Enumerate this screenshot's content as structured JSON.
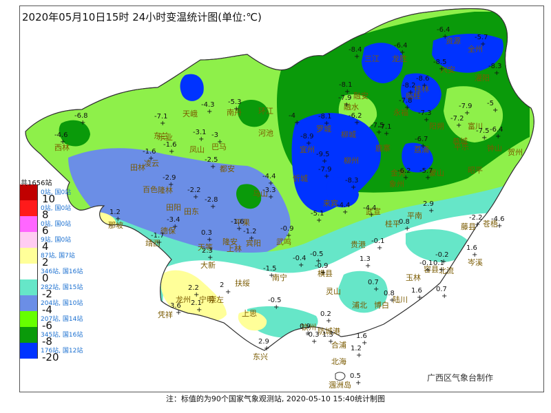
{
  "title": "2020年05月10日15时 24小时变温统计图(单位:℃)",
  "legend": {
    "total": "共1656站",
    "items": [
      {
        "color": "#c00000",
        "count": "0站, 国0站"
      },
      {
        "color": "#ff1a1a",
        "count": "0站, 国0站"
      },
      {
        "color": "#ff66ff",
        "count": "0站, 国0站"
      },
      {
        "color": "#ffccf2",
        "count": "9站, 国0站"
      },
      {
        "color": "#ffff99",
        "count": "87站, 国7站"
      },
      {
        "color": "#ffffff",
        "count": "346站, 国16站"
      },
      {
        "color": "#66e6c8",
        "count": "282站, 国15站"
      },
      {
        "color": "#6b8ee6",
        "count": "204站, 国10站"
      },
      {
        "color": "#66ff00",
        "count": "207站, 国14站"
      },
      {
        "color": "#0a9a0a",
        "count": "345站, 国16站"
      },
      {
        "color": "#0033ff",
        "count": "176站, 国12站"
      }
    ],
    "thresholds": [
      "10",
      "8",
      "6",
      "4",
      "2",
      "0",
      "-2",
      "-4",
      "-6",
      "-8",
      "-20"
    ]
  },
  "credit": "广西区气象台制作",
  "footer": "注：标值的为90个国家气象观测站, 2020-05-10 15:40统计制图",
  "places": [
    {
      "name": "资源"
    },
    {
      "name": "全州"
    },
    {
      "name": "三江"
    },
    {
      "name": "龙胜"
    },
    {
      "name": "兴安"
    },
    {
      "name": "灌阳"
    },
    {
      "name": "融安"
    },
    {
      "name": "临桂"
    },
    {
      "name": "桂林"
    },
    {
      "name": "融水"
    },
    {
      "name": "永福"
    },
    {
      "name": "阳朔"
    },
    {
      "name": "恭城"
    },
    {
      "name": "富川"
    },
    {
      "name": "钟山"
    },
    {
      "name": "贺州"
    },
    {
      "name": "罗城"
    },
    {
      "name": "柳城"
    },
    {
      "name": "鹿寨"
    },
    {
      "name": "荔浦"
    },
    {
      "name": "平乐"
    },
    {
      "name": "昭平"
    },
    {
      "name": "蒙山"
    },
    {
      "name": "金秀"
    },
    {
      "name": "宜州"
    },
    {
      "name": "柳州"
    },
    {
      "name": "象州"
    },
    {
      "name": "环江"
    },
    {
      "name": "南丹"
    },
    {
      "name": "天峨"
    },
    {
      "name": "河池"
    },
    {
      "name": "东兰"
    },
    {
      "name": "凤山"
    },
    {
      "name": "巴马"
    },
    {
      "name": "都安"
    },
    {
      "name": "忻城"
    },
    {
      "name": "来宾"
    },
    {
      "name": "武宣"
    },
    {
      "name": "桂平"
    },
    {
      "name": "平南"
    },
    {
      "name": "藤县"
    },
    {
      "name": "苍梧"
    },
    {
      "name": "乐业"
    },
    {
      "name": "凌云"
    },
    {
      "name": "田林"
    },
    {
      "name": "隆林"
    },
    {
      "name": "西林"
    },
    {
      "name": "百色"
    },
    {
      "name": "田阳"
    },
    {
      "name": "田东"
    },
    {
      "name": "平果"
    },
    {
      "name": "马山"
    },
    {
      "name": "上林"
    },
    {
      "name": "宾阳"
    },
    {
      "name": "武鸣"
    },
    {
      "name": "那坡"
    },
    {
      "name": "德保"
    },
    {
      "name": "靖西"
    },
    {
      "name": "天等"
    },
    {
      "name": "大新"
    },
    {
      "name": "隆安"
    },
    {
      "name": "南宁"
    },
    {
      "name": "横县"
    },
    {
      "name": "贵港"
    },
    {
      "name": "容县"
    },
    {
      "name": "北流"
    },
    {
      "name": "玉林"
    },
    {
      "name": "岑溪"
    },
    {
      "name": "灵山"
    },
    {
      "name": "浦北"
    },
    {
      "name": "博白"
    },
    {
      "name": "陆川"
    },
    {
      "name": "崇左"
    },
    {
      "name": "扶绥"
    },
    {
      "name": "龙州"
    },
    {
      "name": "宁明"
    },
    {
      "name": "凭祥"
    },
    {
      "name": "上思"
    },
    {
      "name": "钦州"
    },
    {
      "name": "防城港"
    },
    {
      "name": "东兴"
    },
    {
      "name": "合浦"
    },
    {
      "name": "北海"
    },
    {
      "name": "涠洲岛"
    }
  ],
  "values": [
    {
      "v": "-6.4"
    },
    {
      "v": "-5.7"
    },
    {
      "v": "-8.4"
    },
    {
      "v": "-6.4"
    },
    {
      "v": "-8.5"
    },
    {
      "v": "-8.3"
    },
    {
      "v": "-8.1"
    },
    {
      "v": "-8.2"
    },
    {
      "v": "-8.6"
    },
    {
      "v": "-7.9"
    },
    {
      "v": "-7.8"
    },
    {
      "v": "-7.3"
    },
    {
      "v": "-7.2"
    },
    {
      "v": "-7.9"
    },
    {
      "v": "-7.5"
    },
    {
      "v": "-5"
    },
    {
      "v": "-6.4"
    },
    {
      "v": "-8.1"
    },
    {
      "v": "-6.2"
    },
    {
      "v": "-8.9"
    },
    {
      "v": "-7.5"
    },
    {
      "v": "-7.1"
    },
    {
      "v": "-6.7"
    },
    {
      "v": "-9.5"
    },
    {
      "v": "-7.9"
    },
    {
      "v": "-6.2"
    },
    {
      "v": "-5.7"
    },
    {
      "v": "-8.3"
    },
    {
      "v": "-4.3"
    },
    {
      "v": "-5.3"
    },
    {
      "v": "-4"
    },
    {
      "v": "-7.1"
    },
    {
      "v": "-3.1"
    },
    {
      "v": "-3"
    },
    {
      "v": "-6.8"
    },
    {
      "v": "-4.6"
    },
    {
      "v": "-1.6"
    },
    {
      "v": "-1.6"
    },
    {
      "v": "-2.5"
    },
    {
      "v": "-2.9"
    },
    {
      "v": "-2.2"
    },
    {
      "v": "-2.8"
    },
    {
      "v": "-4.4"
    },
    {
      "v": "-3.3"
    },
    {
      "v": "-5.1"
    },
    {
      "v": "-4.4"
    },
    {
      "v": "-4.4"
    },
    {
      "v": "-2.2"
    },
    {
      "v": "-4.6"
    },
    {
      "v": "1.2"
    },
    {
      "v": "-3.4"
    },
    {
      "v": "-1.7"
    },
    {
      "v": "0.3"
    },
    {
      "v": "-1.6"
    },
    {
      "v": "-1.2"
    },
    {
      "v": "-0.9"
    },
    {
      "v": "-0.1"
    },
    {
      "v": "0.8"
    },
    {
      "v": "2.9"
    },
    {
      "v": "2.3"
    },
    {
      "v": "-0.4"
    },
    {
      "v": "-0.5"
    },
    {
      "v": "-0.9"
    },
    {
      "v": "-1.5"
    },
    {
      "v": "1.3"
    },
    {
      "v": "0.7"
    },
    {
      "v": "-0.2"
    },
    {
      "v": "-0.1"
    },
    {
      "v": "0.1"
    },
    {
      "v": "1.6"
    },
    {
      "v": "2.2"
    },
    {
      "v": "2"
    },
    {
      "v": "3.6"
    },
    {
      "v": "2.1"
    },
    {
      "v": "-0.5"
    },
    {
      "v": "0.8"
    },
    {
      "v": "1.6"
    },
    {
      "v": "0.7"
    },
    {
      "v": "0.2"
    },
    {
      "v": "0.9"
    },
    {
      "v": "-0.3"
    },
    {
      "v": "1.3"
    },
    {
      "v": "2.9"
    },
    {
      "v": "1.6"
    },
    {
      "v": "1.2"
    },
    {
      "v": "0.5"
    }
  ]
}
